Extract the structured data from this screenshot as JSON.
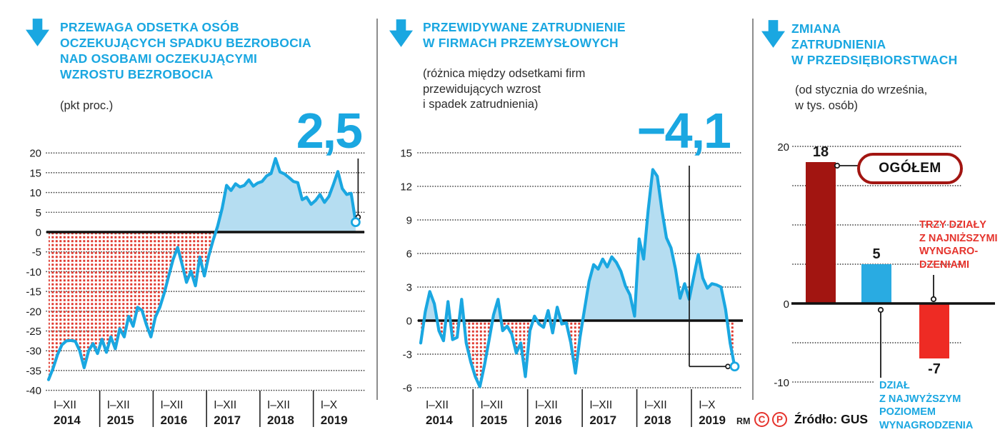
{
  "colors": {
    "blue": "#1aa7e1",
    "light_blue": "#b5ddf1",
    "dark_red": "#a21511",
    "red": "#e5332c",
    "bar_red": "#ee2b24",
    "dot_red": "#e03a30",
    "ink": "#1a1a1a",
    "divider": "#8d8d8d"
  },
  "panel1": {
    "title": [
      "PRZEWAGA ODSETKA OSÓB",
      "OCZEKUJĄCYCH SPADKU BEZROBOCIA",
      "NAD OSOBAMI OCZEKUJĄCYMI",
      "WZROSTU BEZROBOCIA"
    ],
    "subtitle": "(pkt proc.)",
    "big_value": "2,5"
  },
  "panel2": {
    "title": [
      "PRZEWIDYWANE ZATRUDNIENIE",
      "W FIRMACH PRZEMYSŁOWYCH"
    ],
    "subtitle": [
      "(różnica między odsetkami firm",
      "przewidujących wzrost",
      "i spadek zatrudnienia)"
    ],
    "big_value": "−4,1"
  },
  "panel3": {
    "title": [
      "ZMIANA",
      "ZATRUDNIENIA",
      "W PRZEDSIĘBIORSTWACH"
    ],
    "subtitle": [
      "(od stycznia do września,",
      "w tys. osób)"
    ],
    "callout_total": "OGÓŁEM",
    "note_low_pay": [
      "TRZY DZIAŁY",
      "Z NAJNIŻSZYMI",
      "WYNGARO-",
      "DZENIAMI"
    ],
    "note_high_pay": [
      "DZIAŁ",
      "Z NAJWYŻSZYM",
      "POZIOMEM",
      "WYNAGRODZENIA"
    ]
  },
  "footer": {
    "rm": "RM",
    "c": "C",
    "p": "P",
    "source": "Źródło: GUS"
  },
  "chart_data": [
    {
      "type": "area",
      "title": "Przewaga odsetka osób oczekujących spadku bezrobocia nad osobami oczekującymi wzrostu bezrobocia",
      "ylabel": "pkt proc.",
      "ylim": [
        -40,
        20
      ],
      "yticks": [
        20,
        15,
        10,
        5,
        0,
        -5,
        -10,
        -15,
        -20,
        -25,
        -30,
        -35,
        -40
      ],
      "x_labels": [
        {
          "months": "I–XII",
          "year": "2014"
        },
        {
          "months": "I–XII",
          "year": "2015"
        },
        {
          "months": "I–XII",
          "year": "2016"
        },
        {
          "months": "I–XII",
          "year": "2017"
        },
        {
          "months": "I–XII",
          "year": "2018"
        },
        {
          "months": "I–X",
          "year": "2019"
        }
      ],
      "end_label": "2,5",
      "values": [
        -37.3,
        -34.5,
        -31,
        -28.5,
        -27.5,
        -27.4,
        -27.6,
        -30,
        -34.3,
        -30,
        -28.2,
        -30.7,
        -27.1,
        -30.4,
        -26.5,
        -29.5,
        -24.4,
        -26.5,
        -21.3,
        -23.8,
        -19,
        -19.8,
        -23.5,
        -26.5,
        -21.5,
        -19,
        -15.4,
        -11.1,
        -6.9,
        -3.9,
        -8.1,
        -12.7,
        -9.9,
        -13.6,
        -6.3,
        -11.1,
        -6,
        -2,
        1.5,
        6,
        11.8,
        10.5,
        12.2,
        11.4,
        11.8,
        13.2,
        11.6,
        12.4,
        12.8,
        14.2,
        14.8,
        18.6,
        15.2,
        14.7,
        13.8,
        12.8,
        12.5,
        8.2,
        8.8,
        7,
        8,
        9.5,
        7.5,
        9,
        12,
        15.3,
        11,
        9.5,
        9.8,
        2.5
      ]
    },
    {
      "type": "area",
      "title": "Przewidywane zatrudnienie w firmach przemysłowych",
      "ylabel": "różnica między odsetkami firm przewidujących wzrost i spadek zatrudnienia",
      "ylim": [
        -6,
        15
      ],
      "yticks": [
        15,
        12,
        9,
        6,
        3,
        0,
        -3,
        -6
      ],
      "x_labels": [
        {
          "months": "I–XII",
          "year": "2014"
        },
        {
          "months": "I–XII",
          "year": "2015"
        },
        {
          "months": "I–XII",
          "year": "2016"
        },
        {
          "months": "I–XII",
          "year": "2017"
        },
        {
          "months": "I–XII",
          "year": "2018"
        },
        {
          "months": "I–X",
          "year": "2019"
        }
      ],
      "end_label": "−4,1",
      "values": [
        -2,
        0.8,
        2.6,
        1.5,
        -0.9,
        -1.8,
        1.7,
        -1.7,
        -1.5,
        1.9,
        -2,
        -3.7,
        -5,
        -5.9,
        -4,
        -1.8,
        0.5,
        1.9,
        -0.9,
        -0.5,
        -1.2,
        -2.9,
        -2,
        -5,
        -0.9,
        0.4,
        -0.3,
        -0.6,
        0.9,
        -1.1,
        1.2,
        -0.3,
        -0.2,
        -2,
        -4.7,
        -1.5,
        1,
        3.5,
        5,
        4.6,
        5.5,
        4.8,
        5.7,
        5.2,
        4.4,
        3.1,
        2.3,
        0.4,
        7.3,
        5.5,
        9.9,
        13.5,
        12.9,
        9.9,
        7.4,
        6.5,
        4.6,
        2,
        3.3,
        1.9,
        3.9,
        5.9,
        3.8,
        2.9,
        3.3,
        3.2,
        3,
        1,
        -2,
        -4.1
      ]
    },
    {
      "type": "bar",
      "title": "Zmiana zatrudnienia w przedsiębiorstwach (od stycznia do września, w tys. osób)",
      "categories": [
        "OGÓŁEM",
        "DZIAŁ Z NAJWYŻSZYM POZIOMEM WYNAGRODZENIA",
        "TRZY DZIAŁY Z NAJNIŻSZYMI WYNGARODZENIAMI"
      ],
      "values": [
        18,
        5,
        -7
      ],
      "bar_labels": [
        "18",
        "5",
        "-7"
      ],
      "bar_colors": [
        "#a21511",
        "#29abe2",
        "#ee2b24"
      ],
      "ylim": [
        -10,
        20
      ],
      "yticks_labeled": [
        20,
        0,
        -10
      ],
      "grid_step": 5
    }
  ]
}
